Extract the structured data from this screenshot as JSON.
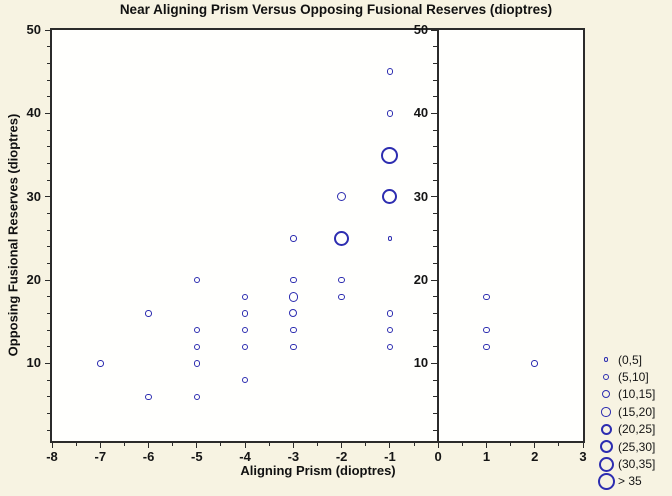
{
  "title": "Near Aligning Prism Versus Opposing Fusional Reserves (dioptres)",
  "chart_data": {
    "type": "scatter",
    "title": "Near Aligning Prism Versus Opposing Fusional Reserves (dioptres)",
    "xlabel": "Aligning Prism (dioptres)",
    "ylabel": "Opposing Fusional Reserves (dioptres)",
    "xlim": [
      -8,
      3
    ],
    "ylim": [
      0,
      50
    ],
    "x_major_ticks": [
      -8,
      -7,
      -6,
      -5,
      -4,
      -3,
      -2,
      -1,
      0,
      1,
      2,
      3
    ],
    "x_minor_step": 0.5,
    "y_major_ticks": [
      10,
      20,
      30,
      40,
      50
    ],
    "y_minor_step": 2,
    "reference_axis_x": 0,
    "inner_axis_labels": [
      50,
      40,
      30,
      20,
      10
    ],
    "grid": "off",
    "legend_position": "bottom-right",
    "bubble_color": "#2d2db0",
    "frame_color": "#2b2b2b",
    "background_color": "#f7f3e2",
    "plot_background": "#fffffd",
    "points": [
      {
        "x": -7,
        "y": 10,
        "size_class": 2
      },
      {
        "x": -6,
        "y": 16,
        "size_class": 2
      },
      {
        "x": -6,
        "y": 6,
        "size_class": 2
      },
      {
        "x": -5,
        "y": 20,
        "size_class": 2
      },
      {
        "x": -5,
        "y": 14,
        "size_class": 2
      },
      {
        "x": -5,
        "y": 12,
        "size_class": 2
      },
      {
        "x": -5,
        "y": 10,
        "size_class": 2
      },
      {
        "x": -5,
        "y": 6,
        "size_class": 2
      },
      {
        "x": -4,
        "y": 18,
        "size_class": 2
      },
      {
        "x": -4,
        "y": 16,
        "size_class": 2
      },
      {
        "x": -4,
        "y": 14,
        "size_class": 2
      },
      {
        "x": -4,
        "y": 12,
        "size_class": 2
      },
      {
        "x": -4,
        "y": 8,
        "size_class": 2
      },
      {
        "x": -3,
        "y": 25,
        "size_class": 2
      },
      {
        "x": -3,
        "y": 20,
        "size_class": 2
      },
      {
        "x": -3,
        "y": 18,
        "size_class": 4
      },
      {
        "x": -3,
        "y": 16,
        "size_class": 3
      },
      {
        "x": -3,
        "y": 14,
        "size_class": 2
      },
      {
        "x": -3,
        "y": 12,
        "size_class": 2
      },
      {
        "x": -2,
        "y": 30,
        "size_class": 4
      },
      {
        "x": -2,
        "y": 25,
        "size_class": 7
      },
      {
        "x": -2,
        "y": 20,
        "size_class": 2
      },
      {
        "x": -2,
        "y": 18,
        "size_class": 2
      },
      {
        "x": -1,
        "y": 45,
        "size_class": 2
      },
      {
        "x": -1,
        "y": 40,
        "size_class": 2
      },
      {
        "x": -1,
        "y": 35,
        "size_class": 8
      },
      {
        "x": -1,
        "y": 30,
        "size_class": 7
      },
      {
        "x": -1,
        "y": 25,
        "size_class": 1
      },
      {
        "x": -1,
        "y": 16,
        "size_class": 2
      },
      {
        "x": -1,
        "y": 14,
        "size_class": 2
      },
      {
        "x": -1,
        "y": 12,
        "size_class": 2
      },
      {
        "x": 1,
        "y": 18,
        "size_class": 2
      },
      {
        "x": 1,
        "y": 14,
        "size_class": 2
      },
      {
        "x": 1,
        "y": 12,
        "size_class": 2
      },
      {
        "x": 2,
        "y": 10,
        "size_class": 2
      }
    ],
    "legend": {
      "entries": [
        {
          "label": "(0,5]",
          "size_class": 1
        },
        {
          "label": "(5,10]",
          "size_class": 2
        },
        {
          "label": "(10,15]",
          "size_class": 3
        },
        {
          "label": "(15,20]",
          "size_class": 4
        },
        {
          "label": "(20,25]",
          "size_class": 5
        },
        {
          "label": "(25,30]",
          "size_class": 6
        },
        {
          "label": "(30,35]",
          "size_class": 7
        },
        {
          "label": "> 35",
          "size_class": 8
        }
      ]
    }
  }
}
